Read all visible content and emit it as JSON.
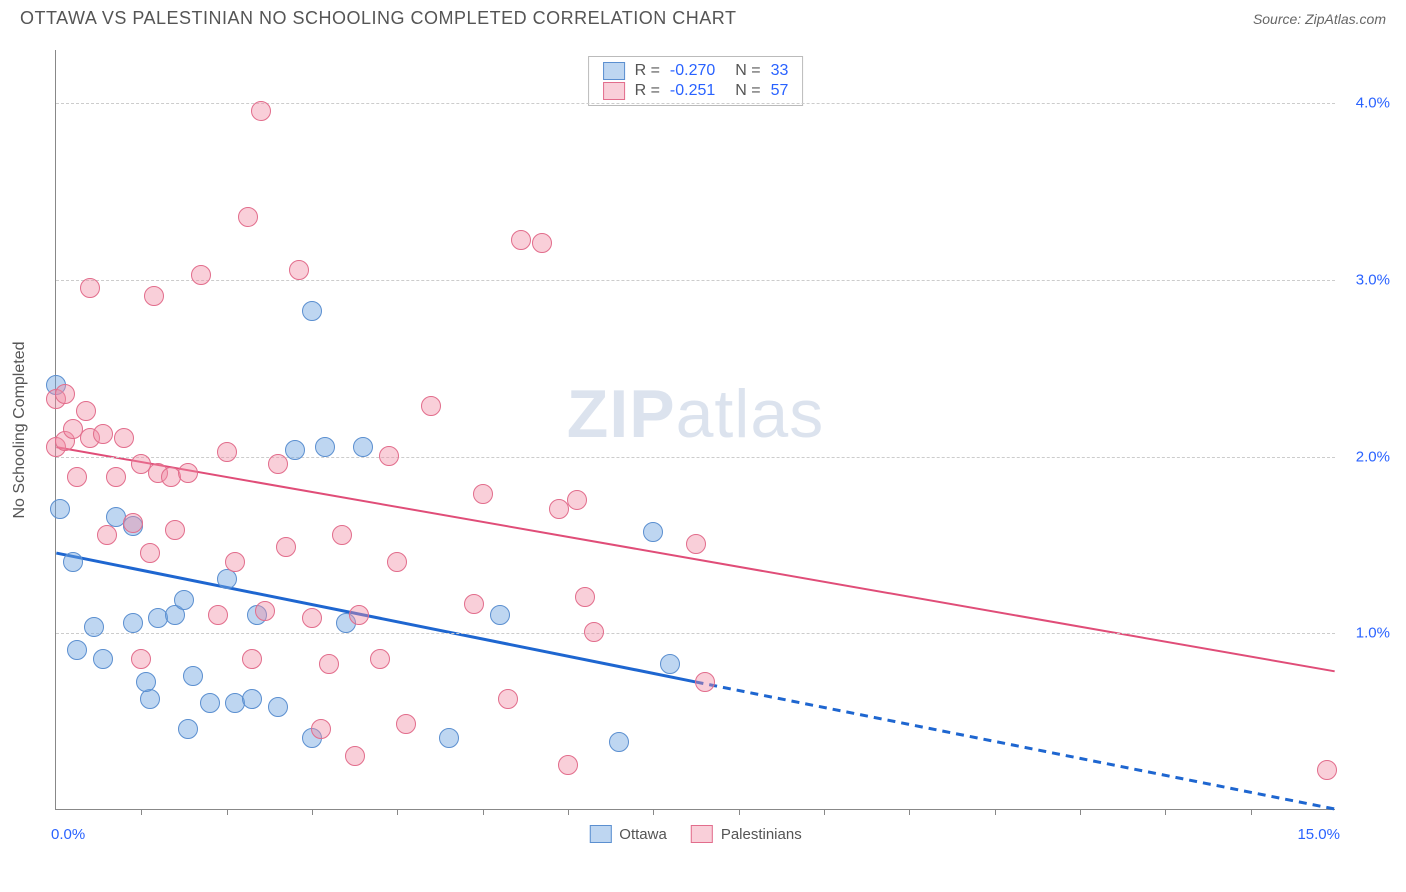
{
  "header": {
    "title": "OTTAWA VS PALESTINIAN NO SCHOOLING COMPLETED CORRELATION CHART",
    "source": "Source: ZipAtlas.com"
  },
  "watermark": {
    "bold": "ZIP",
    "light": "atlas"
  },
  "chart": {
    "type": "scatter",
    "y_axis_title": "No Schooling Completed",
    "background_color": "#ffffff",
    "grid_color": "#cccccc",
    "axis_color": "#888888",
    "xlim": [
      0,
      15
    ],
    "ylim": [
      0,
      4.3
    ],
    "x_ticks": [
      1,
      2,
      3,
      4,
      5,
      6,
      7,
      8,
      9,
      10,
      11,
      12,
      13,
      14
    ],
    "x_label_min": "0.0%",
    "x_label_max": "15.0%",
    "x_label_color": "#2962ff",
    "y_gridlines": [
      1.0,
      2.0,
      3.0,
      4.0
    ],
    "y_tick_labels": [
      "1.0%",
      "2.0%",
      "3.0%",
      "4.0%"
    ],
    "y_tick_color": "#2962ff",
    "series": {
      "ottawa": {
        "label": "Ottawa",
        "fill": "rgba(110,165,225,0.45)",
        "stroke": "#5b8fd0",
        "marker_radius": 10,
        "trend_color": "#1e66d0",
        "trend_width": 3,
        "trend_solid": {
          "x1": 0,
          "y1": 1.45,
          "x2": 7.5,
          "y2": 0.72
        },
        "trend_dashed": {
          "x1": 7.5,
          "y1": 0.72,
          "x2": 15,
          "y2": 0.0
        },
        "points": [
          [
            0.0,
            2.4
          ],
          [
            0.05,
            1.7
          ],
          [
            0.2,
            1.4
          ],
          [
            0.25,
            0.9
          ],
          [
            0.55,
            0.85
          ],
          [
            0.7,
            1.65
          ],
          [
            0.9,
            1.05
          ],
          [
            0.9,
            1.6
          ],
          [
            1.2,
            1.08
          ],
          [
            1.1,
            0.62
          ],
          [
            1.4,
            1.1
          ],
          [
            1.6,
            0.75
          ],
          [
            1.5,
            1.18
          ],
          [
            1.8,
            0.6
          ],
          [
            2.0,
            1.3
          ],
          [
            2.1,
            0.6
          ],
          [
            2.3,
            0.62
          ],
          [
            2.35,
            1.1
          ],
          [
            2.6,
            0.58
          ],
          [
            2.8,
            2.03
          ],
          [
            3.0,
            2.82
          ],
          [
            3.15,
            2.05
          ],
          [
            3.4,
            1.05
          ],
          [
            3.6,
            2.05
          ],
          [
            3.0,
            0.4
          ],
          [
            4.6,
            0.4
          ],
          [
            5.2,
            1.1
          ],
          [
            7.2,
            0.82
          ],
          [
            7.0,
            1.57
          ],
          [
            6.6,
            0.38
          ],
          [
            1.55,
            0.45
          ],
          [
            0.45,
            1.03
          ],
          [
            1.05,
            0.72
          ]
        ]
      },
      "palestinians": {
        "label": "Palestinians",
        "fill": "rgba(240,140,165,0.42)",
        "stroke": "#e26d8c",
        "marker_radius": 10,
        "trend_color": "#e04d78",
        "trend_width": 2,
        "trend_solid": {
          "x1": 0,
          "y1": 2.05,
          "x2": 15,
          "y2": 0.78
        },
        "points": [
          [
            0.0,
            2.32
          ],
          [
            0.0,
            2.05
          ],
          [
            0.1,
            2.08
          ],
          [
            0.2,
            2.15
          ],
          [
            0.25,
            1.88
          ],
          [
            0.35,
            2.25
          ],
          [
            0.4,
            2.95
          ],
          [
            0.4,
            2.1
          ],
          [
            0.55,
            2.12
          ],
          [
            0.6,
            1.55
          ],
          [
            0.7,
            1.88
          ],
          [
            0.8,
            2.1
          ],
          [
            0.9,
            1.62
          ],
          [
            1.0,
            1.95
          ],
          [
            1.1,
            1.45
          ],
          [
            1.15,
            2.9
          ],
          [
            1.2,
            1.9
          ],
          [
            1.35,
            1.88
          ],
          [
            1.4,
            1.58
          ],
          [
            1.55,
            1.9
          ],
          [
            1.7,
            3.02
          ],
          [
            1.9,
            1.1
          ],
          [
            2.0,
            2.02
          ],
          [
            2.1,
            1.4
          ],
          [
            2.25,
            3.35
          ],
          [
            2.3,
            0.85
          ],
          [
            2.4,
            3.95
          ],
          [
            2.45,
            1.12
          ],
          [
            2.7,
            1.48
          ],
          [
            2.85,
            3.05
          ],
          [
            3.0,
            1.08
          ],
          [
            3.1,
            0.45
          ],
          [
            3.2,
            0.82
          ],
          [
            3.35,
            1.55
          ],
          [
            3.5,
            0.3
          ],
          [
            3.55,
            1.1
          ],
          [
            3.8,
            0.85
          ],
          [
            4.0,
            1.4
          ],
          [
            4.1,
            0.48
          ],
          [
            4.4,
            2.28
          ],
          [
            4.9,
            1.16
          ],
          [
            5.0,
            1.78
          ],
          [
            5.3,
            0.62
          ],
          [
            5.45,
            3.22
          ],
          [
            5.7,
            3.2
          ],
          [
            5.9,
            1.7
          ],
          [
            6.0,
            0.25
          ],
          [
            6.1,
            1.75
          ],
          [
            6.2,
            1.2
          ],
          [
            6.3,
            1.0
          ],
          [
            7.5,
            1.5
          ],
          [
            7.6,
            0.72
          ],
          [
            14.9,
            0.22
          ],
          [
            1.0,
            0.85
          ],
          [
            2.6,
            1.95
          ],
          [
            3.9,
            2.0
          ],
          [
            0.1,
            2.35
          ]
        ]
      }
    },
    "legend_top": [
      {
        "series": "ottawa",
        "r": "-0.270",
        "n": "33"
      },
      {
        "series": "palestinians",
        "r": "-0.251",
        "n": "57"
      }
    ],
    "legend_bottom": [
      {
        "series": "ottawa"
      },
      {
        "series": "palestinians"
      }
    ]
  }
}
